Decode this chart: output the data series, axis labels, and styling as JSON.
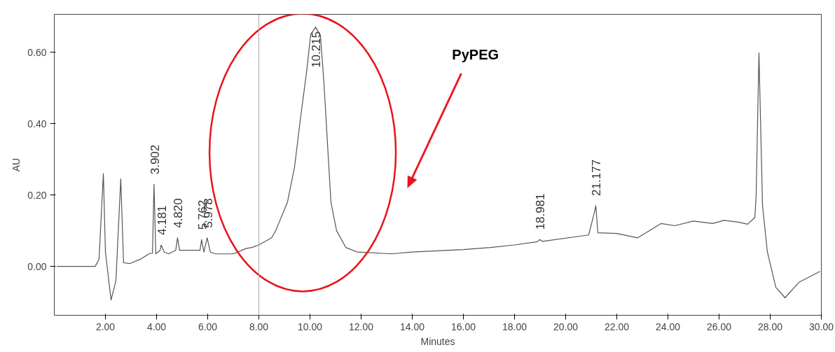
{
  "chart_data": {
    "type": "line",
    "xlabel": "Minutes",
    "ylabel": "AU",
    "series": [
      {
        "color": "#555555",
        "x": [
          0.1,
          1.6,
          1.75,
          1.92,
          2.0,
          2.22,
          2.41,
          2.6,
          2.71,
          2.96,
          3.37,
          3.7,
          3.84,
          3.9,
          3.97,
          4.14,
          4.18,
          4.3,
          4.47,
          4.75,
          4.82,
          4.9,
          5.5,
          5.7,
          5.76,
          5.85,
          5.98,
          6.1,
          6.3,
          7.0,
          7.5,
          7.73,
          8.0,
          8.5,
          8.66,
          9.12,
          9.4,
          9.62,
          9.86,
          10.03,
          10.22,
          10.41,
          10.55,
          10.68,
          10.82,
          11.04,
          11.4,
          11.86,
          13.2,
          14.0,
          16.0,
          17.07,
          18.0,
          18.9,
          18.98,
          19.1,
          20.9,
          21.12,
          21.18,
          21.26,
          22.0,
          22.82,
          23.73,
          24.27,
          25.0,
          25.75,
          26.19,
          26.74,
          27.12,
          27.4,
          27.45,
          27.56,
          27.7,
          27.89,
          28.22,
          28.58,
          29.12,
          29.95
        ],
        "values": [
          0,
          0,
          0.02,
          0.26,
          0.04,
          -0.094,
          -0.04,
          0.245,
          0.01,
          0.008,
          0.02,
          0.035,
          0.037,
          0.23,
          0.035,
          0.045,
          0.06,
          0.04,
          0.035,
          0.045,
          0.08,
          0.045,
          0.045,
          0.045,
          0.075,
          0.04,
          0.08,
          0.04,
          0.035,
          0.035,
          0.05,
          0.053,
          0.06,
          0.08,
          0.1,
          0.18,
          0.28,
          0.41,
          0.54,
          0.65,
          0.67,
          0.647,
          0.51,
          0.35,
          0.18,
          0.1,
          0.053,
          0.04,
          0.035,
          0.04,
          0.047,
          0.053,
          0.06,
          0.069,
          0.075,
          0.07,
          0.088,
          0.15,
          0.17,
          0.094,
          0.092,
          0.08,
          0.12,
          0.114,
          0.127,
          0.12,
          0.129,
          0.124,
          0.118,
          0.137,
          0.2,
          0.598,
          0.17,
          0.04,
          -0.059,
          -0.088,
          -0.045,
          -0.014
        ]
      }
    ],
    "xlim": [
      0,
      30
    ],
    "ylim": [
      -0.137,
      0.706
    ],
    "xticks": [
      {
        "value": 2,
        "label": "2.00"
      },
      {
        "value": 4,
        "label": "4.00"
      },
      {
        "value": 6,
        "label": "6.00"
      },
      {
        "value": 8,
        "label": "8.00"
      },
      {
        "value": 10,
        "label": "10.00"
      },
      {
        "value": 12,
        "label": "12.00"
      },
      {
        "value": 14,
        "label": "14.00"
      },
      {
        "value": 16,
        "label": "16.00"
      },
      {
        "value": 18,
        "label": "18.00"
      },
      {
        "value": 20,
        "label": "20.00"
      },
      {
        "value": 22,
        "label": "22.00"
      },
      {
        "value": 24,
        "label": "24.00"
      },
      {
        "value": 26,
        "label": "26.00"
      },
      {
        "value": 28,
        "label": "28.00"
      },
      {
        "value": 30,
        "label": "30.00"
      }
    ],
    "yticks": [
      {
        "value": 0,
        "label": "0.00"
      },
      {
        "value": 0.2,
        "label": "0.20"
      },
      {
        "value": 0.4,
        "label": "0.40"
      },
      {
        "value": 0.6,
        "label": "0.60"
      }
    ],
    "ref_lines": [
      {
        "axis": "x",
        "value": 8.0,
        "color": "#aaaaaa"
      }
    ],
    "grid": false,
    "line_style": "solid",
    "marker": "none",
    "annotations": [
      {
        "text": "3.902",
        "x": 3.902,
        "y": 0.23
      },
      {
        "text": "4.181",
        "x": 4.181,
        "y": 0.06
      },
      {
        "text": "4.820",
        "x": 4.82,
        "y": 0.08
      },
      {
        "text": "5.762",
        "x": 5.762,
        "y": 0.075
      },
      {
        "text": "5.978",
        "x": 5.978,
        "y": 0.08
      },
      {
        "text": "10.215",
        "x": 10.215,
        "y": 0.67
      },
      {
        "text": "18.981",
        "x": 18.981,
        "y": 0.075
      },
      {
        "text": "21.177",
        "x": 21.177,
        "y": 0.17
      },
      "PyPEG"
    ]
  }
}
